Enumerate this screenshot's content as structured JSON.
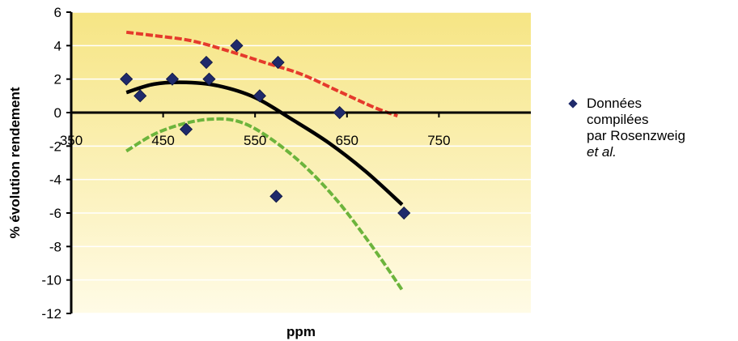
{
  "chart_data": {
    "type": "scatter",
    "title": "",
    "xlabel": "ppm",
    "ylabel": "% évolution rendement",
    "xlim": [
      350,
      850
    ],
    "ylim": [
      -12,
      6
    ],
    "x_ticks": [
      "350",
      "450",
      "550",
      "650",
      "750"
    ],
    "y_ticks": [
      "6",
      "4",
      "2",
      "0",
      "-2",
      "-4",
      "-6",
      "-8",
      "-10",
      "-12"
    ],
    "legend_position": "right",
    "series": [
      {
        "name": "Données compilées par Rosenzweig et al.",
        "marker": "diamond",
        "color": "#1f2a6b",
        "points": [
          [
            410,
            2
          ],
          [
            425,
            1
          ],
          [
            460,
            2
          ],
          [
            475,
            -1
          ],
          [
            497,
            3
          ],
          [
            500,
            2
          ],
          [
            530,
            4
          ],
          [
            555,
            1
          ],
          [
            575,
            3
          ],
          [
            573,
            -5
          ],
          [
            642,
            0
          ],
          [
            712,
            -6
          ]
        ]
      }
    ],
    "trend_lines": [
      {
        "color": "#000000",
        "style": "solid",
        "points": [
          [
            410,
            1.2
          ],
          [
            440,
            1.7
          ],
          [
            475,
            1.8
          ],
          [
            510,
            1.6
          ],
          [
            550,
            0.9
          ],
          [
            590,
            -0.4
          ],
          [
            630,
            -1.8
          ],
          [
            670,
            -3.5
          ],
          [
            710,
            -5.5
          ]
        ]
      },
      {
        "color": "#e53a2c",
        "style": "dashed",
        "points": [
          [
            410,
            4.8
          ],
          [
            440,
            4.6
          ],
          [
            480,
            4.3
          ],
          [
            520,
            3.7
          ],
          [
            560,
            3.0
          ],
          [
            600,
            2.3
          ],
          [
            640,
            1.3
          ],
          [
            680,
            0.3
          ],
          [
            705,
            -0.2
          ]
        ]
      },
      {
        "color": "#6cb43c",
        "style": "dashed",
        "points": [
          [
            410,
            -2.3
          ],
          [
            440,
            -1.3
          ],
          [
            470,
            -0.7
          ],
          [
            500,
            -0.4
          ],
          [
            530,
            -0.5
          ],
          [
            560,
            -1.3
          ],
          [
            600,
            -3.0
          ],
          [
            640,
            -5.3
          ],
          [
            680,
            -8.2
          ],
          [
            710,
            -10.6
          ]
        ]
      }
    ],
    "legend": {
      "line1": "Données",
      "line2": "compilées",
      "line3": "par Rosenzweig",
      "line4": "et al."
    }
  }
}
